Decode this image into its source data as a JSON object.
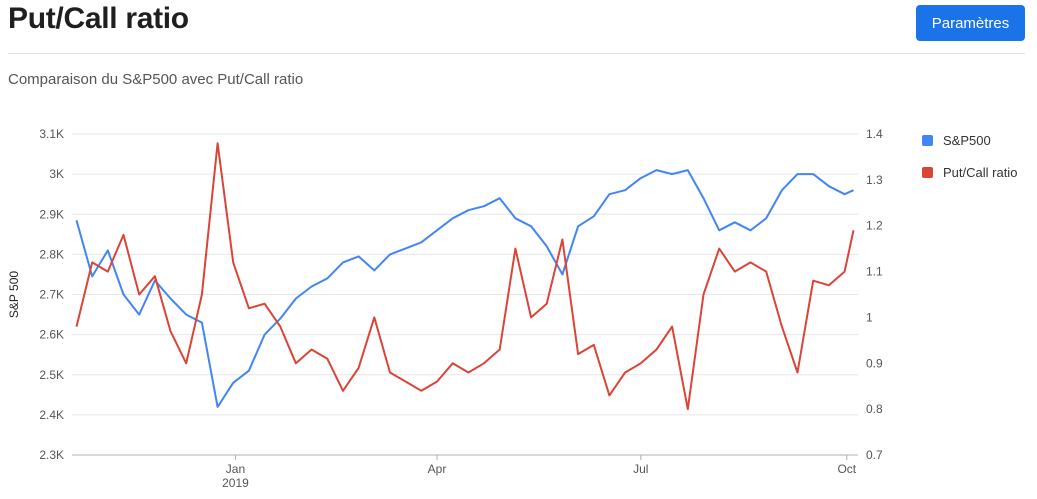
{
  "header": {
    "title": "Put/Call ratio",
    "settings_label": "Paramètres"
  },
  "subtitle": "Comparaison du S&P500 avec Put/Call ratio",
  "colors": {
    "sp500": "#4285f4",
    "putcall": "#db4437",
    "button": "#1a73e8"
  },
  "chart_data": {
    "type": "line",
    "x": [
      "2018-10-22",
      "2018-10-29",
      "2018-11-05",
      "2018-11-12",
      "2018-11-19",
      "2018-11-26",
      "2018-12-03",
      "2018-12-10",
      "2018-12-17",
      "2018-12-24",
      "2018-12-31",
      "2019-01-07",
      "2019-01-14",
      "2019-01-21",
      "2019-01-28",
      "2019-02-04",
      "2019-02-11",
      "2019-02-18",
      "2019-02-25",
      "2019-03-04",
      "2019-03-11",
      "2019-03-18",
      "2019-03-25",
      "2019-04-01",
      "2019-04-08",
      "2019-04-15",
      "2019-04-22",
      "2019-04-29",
      "2019-05-06",
      "2019-05-13",
      "2019-05-20",
      "2019-05-27",
      "2019-06-03",
      "2019-06-10",
      "2019-06-17",
      "2019-06-24",
      "2019-07-01",
      "2019-07-08",
      "2019-07-15",
      "2019-07-22",
      "2019-07-29",
      "2019-08-05",
      "2019-08-12",
      "2019-08-19",
      "2019-08-26",
      "2019-09-02",
      "2019-09-09",
      "2019-09-16",
      "2019-09-23",
      "2019-09-30",
      "2019-10-04"
    ],
    "series": [
      {
        "name": "S&P500",
        "axis": "left",
        "values": [
          2885,
          2745,
          2810,
          2700,
          2650,
          2735,
          2690,
          2650,
          2630,
          2420,
          2480,
          2510,
          2600,
          2640,
          2690,
          2720,
          2740,
          2780,
          2795,
          2760,
          2800,
          2815,
          2830,
          2860,
          2890,
          2910,
          2920,
          2940,
          2890,
          2870,
          2820,
          2750,
          2870,
          2895,
          2950,
          2960,
          2990,
          3010,
          3000,
          3010,
          2940,
          2860,
          2880,
          2860,
          2890,
          2960,
          3000,
          3000,
          2970,
          2950,
          2960
        ]
      },
      {
        "name": "Put/Call ratio",
        "axis": "right",
        "values": [
          0.98,
          1.12,
          1.1,
          1.18,
          1.05,
          1.09,
          0.97,
          0.9,
          1.05,
          1.38,
          1.12,
          1.02,
          1.03,
          0.98,
          0.9,
          0.93,
          0.91,
          0.84,
          0.89,
          1.0,
          0.88,
          0.86,
          0.84,
          0.86,
          0.9,
          0.88,
          0.9,
          0.93,
          1.15,
          1.0,
          1.03,
          1.17,
          0.92,
          0.94,
          0.83,
          0.88,
          0.9,
          0.93,
          0.98,
          0.8,
          1.05,
          1.15,
          1.1,
          1.12,
          1.1,
          0.98,
          0.88,
          1.08,
          1.07,
          1.1,
          1.19
        ]
      }
    ],
    "x_ticks": [
      {
        "date": "2019-01-01",
        "label": "Jan",
        "sublabel": "2019"
      },
      {
        "date": "2019-04-01",
        "label": "Apr",
        "sublabel": ""
      },
      {
        "date": "2019-07-01",
        "label": "Jul",
        "sublabel": ""
      },
      {
        "date": "2019-10-01",
        "label": "Oct",
        "sublabel": ""
      }
    ],
    "y_left": {
      "label": "S&P 500",
      "range": [
        2300,
        3100
      ],
      "ticks": [
        2300,
        2400,
        2500,
        2600,
        2700,
        2800,
        2900,
        3000,
        3100
      ],
      "tick_labels": [
        "2.3K",
        "2.4K",
        "2.5K",
        "2.6K",
        "2.7K",
        "2.8K",
        "2.9K",
        "3K",
        "3.1K"
      ]
    },
    "y_right": {
      "label": "",
      "range": [
        0.7,
        1.4
      ],
      "ticks": [
        0.7,
        0.8,
        0.9,
        1.0,
        1.1,
        1.2,
        1.3,
        1.4
      ],
      "tick_labels": [
        "0.7",
        "0.8",
        "0.9",
        "1",
        "1.1",
        "1.2",
        "1.3",
        "1.4"
      ]
    },
    "x_range": [
      "2018-10-20",
      "2019-10-06"
    ],
    "grid": true,
    "legend": "right"
  }
}
